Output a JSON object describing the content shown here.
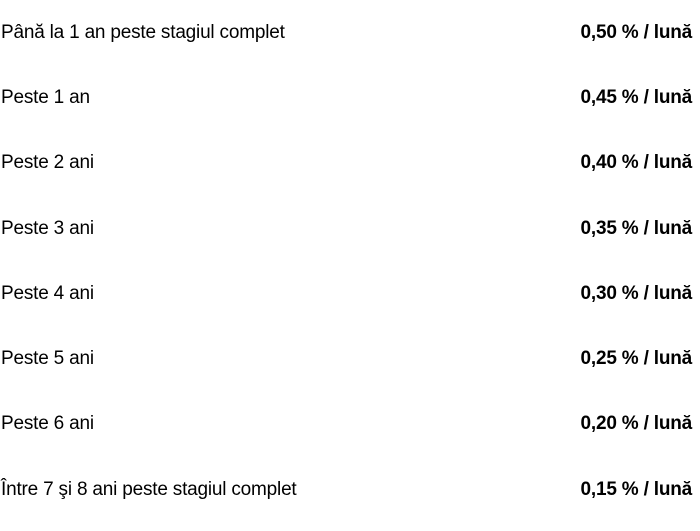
{
  "rows": [
    {
      "label": "Până la 1 an peste stagiul complet",
      "value": "0,50 % / lună"
    },
    {
      "label": "Peste 1 an",
      "value": "0,45 % / lună"
    },
    {
      "label": "Peste 2 ani",
      "value": "0,40 % / lună"
    },
    {
      "label": "Peste 3 ani",
      "value": "0,35 % / lună"
    },
    {
      "label": "Peste 4 ani",
      "value": "0,30 % / lună"
    },
    {
      "label": "Peste 5 ani",
      "value": "0,25 % / lună"
    },
    {
      "label": "Peste 6 ani",
      "value": "0,20 % / lună"
    },
    {
      "label": "Între 7 şi 8 ani peste stagiul complet",
      "value": "0,15 % / lună"
    }
  ]
}
